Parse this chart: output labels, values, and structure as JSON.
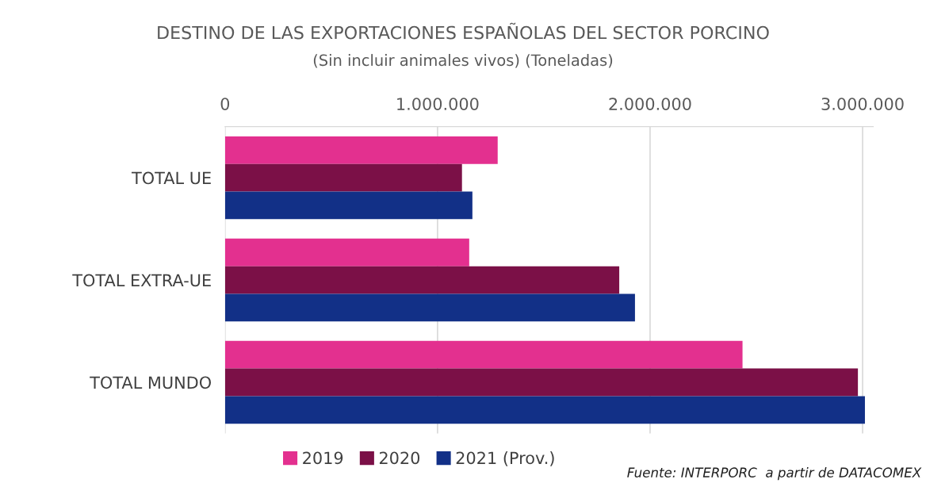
{
  "chart_data": {
    "type": "bar",
    "orientation": "horizontal",
    "title": "DESTINO DE LAS EXPORTACIONES ESPAÑOLAS DEL SECTOR PORCINO",
    "subtitle": "(Sin incluir animales vivos) (Toneladas)",
    "categories": [
      "TOTAL UE",
      "TOTAL EXTRA-UE",
      "TOTAL MUNDO"
    ],
    "series": [
      {
        "name": "2019",
        "color": "#e3308f",
        "values": [
          1283000,
          1149000,
          2435000
        ]
      },
      {
        "name": "2020",
        "color": "#7b1047",
        "values": [
          1115000,
          1855000,
          2978000
        ]
      },
      {
        "name": "2021 (Prov.)",
        "color": "#123087",
        "values": [
          1164000,
          1929000,
          3011000
        ]
      }
    ],
    "xlim": [
      0,
      3050000
    ],
    "xticks": [
      0,
      {
        "value": 1000000,
        "label": "1.000.000"
      },
      {
        "value": 2000000,
        "label": "2.000.000"
      },
      {
        "value": 3000000,
        "label": "3.000.000"
      }
    ],
    "grid": "x",
    "legend": "bottom",
    "annotations": [
      "Fuente: INTERPORC  a partir de DATACOMEX"
    ]
  }
}
